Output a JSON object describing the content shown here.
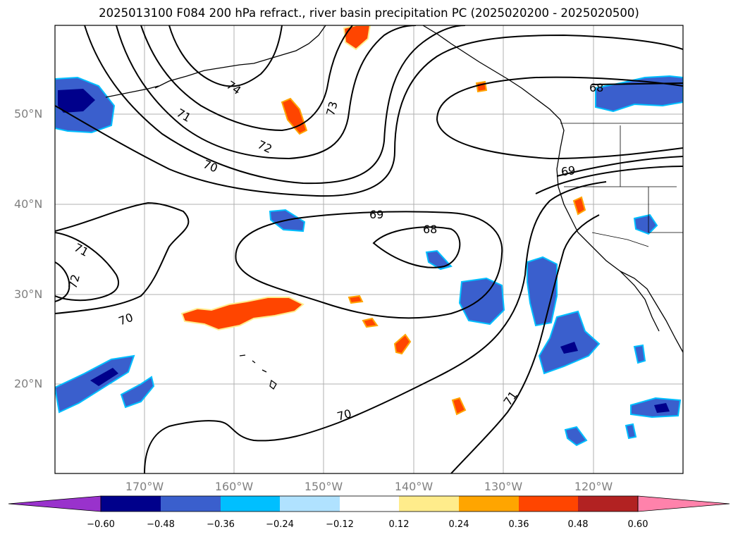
{
  "title": "2025013100 F084 200 hPa refract., river basin precipitation PC (2025020200 - 2025020500)",
  "map": {
    "latitude_labels": [
      "50°N",
      "40°N",
      "30°N",
      "20°N"
    ],
    "longitude_labels": [
      "170°W",
      "160°W",
      "150°W",
      "140°W",
      "130°W",
      "120°W"
    ],
    "contour_labels": [
      "74",
      "73",
      "72",
      "71",
      "70",
      "69",
      "68",
      "68",
      "69",
      "71",
      "72",
      "70",
      "70",
      "71"
    ],
    "colors": {
      "contour": "#000000",
      "gridline": "#b0b0b0",
      "tick_label": "#808080"
    }
  },
  "colorbar": {
    "ticks": [
      "−0.60",
      "−0.48",
      "−0.36",
      "−0.24",
      "−0.12",
      "0.12",
      "0.24",
      "0.36",
      "0.48",
      "0.60"
    ],
    "colors": [
      "#9932cc",
      "#00008b",
      "#3a5fcd",
      "#00bfff",
      "#b0e2ff",
      "#ffffff",
      "#ffec8b",
      "#ffa500",
      "#ff4500",
      "#b22222",
      "#ff82ab"
    ]
  }
}
